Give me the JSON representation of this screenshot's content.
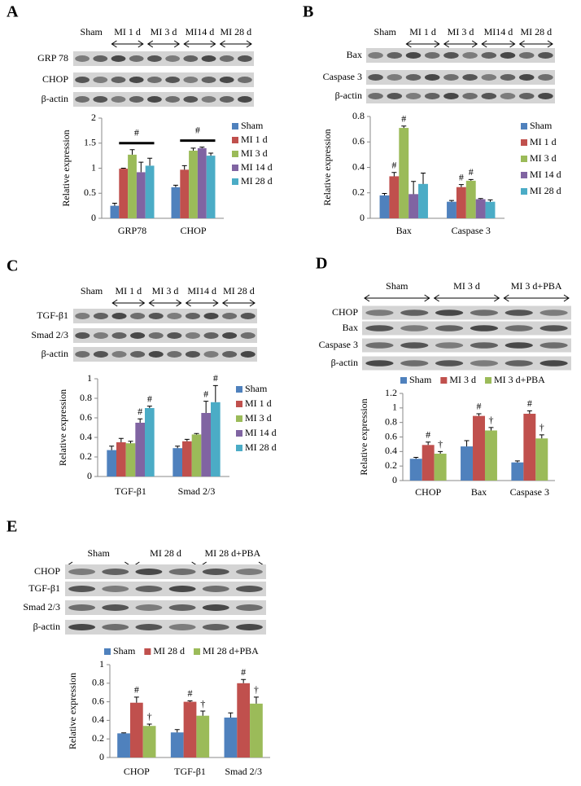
{
  "chart_data": [
    {
      "type": "bar",
      "panel_label": "A",
      "y_label": "Relative expression",
      "legend": "right",
      "blot": {
        "lane_groups": [
          "Sham",
          "MI 1 d",
          "MI 3 d",
          "MI14 d",
          "MI 28 d"
        ],
        "rows": [
          "GRP 78",
          "CHOP",
          "β-actin"
        ]
      },
      "categories": [
        "GRP78",
        "CHOP"
      ],
      "ylim": [
        0,
        2
      ],
      "yticks": [
        0,
        0.5,
        1,
        1.5,
        2
      ],
      "group_annotations": [
        "#",
        "#"
      ],
      "series": [
        {
          "name": "Sham",
          "color": "#4f81bd",
          "values": [
            0.25,
            0.62
          ],
          "errors": [
            0.05,
            0.04
          ]
        },
        {
          "name": "MI 1 d",
          "color": "#c0504d",
          "values": [
            0.99,
            0.97
          ],
          "errors": [
            0.01,
            0.08
          ]
        },
        {
          "name": "MI 3 d",
          "color": "#9bbb59",
          "values": [
            1.27,
            1.35
          ],
          "errors": [
            0.1,
            0.05
          ]
        },
        {
          "name": "MI 14 d",
          "color": "#8064a2",
          "values": [
            0.92,
            1.4
          ],
          "errors": [
            0.2,
            0.02
          ]
        },
        {
          "name": "MI 28 d",
          "color": "#4bacc6",
          "values": [
            1.05,
            1.25
          ],
          "errors": [
            0.15,
            0.05
          ]
        }
      ]
    },
    {
      "type": "bar",
      "panel_label": "B",
      "y_label": "Relative expression",
      "legend": "right",
      "blot": {
        "lane_groups": [
          "Sham",
          "MI 1 d",
          "MI 3 d",
          "MI14 d",
          "MI 28 d"
        ],
        "rows": [
          "Bax",
          "Caspase 3",
          "β-actin"
        ]
      },
      "categories": [
        "Bax",
        "Caspase 3"
      ],
      "ylim": [
        0,
        0.8
      ],
      "yticks": [
        0,
        0.2,
        0.4,
        0.6,
        0.8
      ],
      "series": [
        {
          "name": "Sham",
          "color": "#4f81bd",
          "values": [
            0.18,
            0.13
          ],
          "errors": [
            0.015,
            0.01
          ],
          "annotations": [
            null,
            null
          ]
        },
        {
          "name": "MI 1 d",
          "color": "#c0504d",
          "values": [
            0.33,
            0.245
          ],
          "errors": [
            0.03,
            0.02
          ],
          "annotations": [
            "#",
            "#"
          ]
        },
        {
          "name": "MI 3 d",
          "color": "#9bbb59",
          "values": [
            0.71,
            0.295
          ],
          "errors": [
            0.015,
            0.01
          ],
          "annotations": [
            "#",
            "#"
          ]
        },
        {
          "name": "MI 14 d",
          "color": "#8064a2",
          "values": [
            0.19,
            0.15
          ],
          "errors": [
            0.1,
            0.005
          ],
          "annotations": [
            null,
            null
          ]
        },
        {
          "name": "MI 28 d",
          "color": "#4bacc6",
          "values": [
            0.27,
            0.13
          ],
          "errors": [
            0.085,
            0.015
          ],
          "annotations": [
            null,
            null
          ]
        }
      ]
    },
    {
      "type": "bar",
      "panel_label": "C",
      "y_label": "Relative expression",
      "legend": "right",
      "blot": {
        "lane_groups": [
          "Sham",
          "MI 1 d",
          "MI 3 d",
          "MI14 d",
          "MI 28 d"
        ],
        "rows": [
          "TGF-β1",
          "Smad 2/3",
          "β-actin"
        ]
      },
      "categories": [
        "TGF-β1",
        "Smad 2/3"
      ],
      "ylim": [
        0,
        1
      ],
      "yticks": [
        0,
        0.2,
        0.4,
        0.6,
        0.8,
        1
      ],
      "series": [
        {
          "name": "Sham",
          "color": "#4f81bd",
          "values": [
            0.27,
            0.29
          ],
          "errors": [
            0.04,
            0.02
          ],
          "annotations": [
            null,
            null
          ]
        },
        {
          "name": "MI 1 d",
          "color": "#c0504d",
          "values": [
            0.35,
            0.36
          ],
          "errors": [
            0.04,
            0.02
          ],
          "annotations": [
            null,
            null
          ]
        },
        {
          "name": "MI 3 d",
          "color": "#9bbb59",
          "values": [
            0.34,
            0.43
          ],
          "errors": [
            0.02,
            0.01
          ],
          "annotations": [
            null,
            null
          ]
        },
        {
          "name": "MI 14 d",
          "color": "#8064a2",
          "values": [
            0.55,
            0.65
          ],
          "errors": [
            0.04,
            0.12
          ],
          "annotations": [
            "#",
            "#"
          ]
        },
        {
          "name": "MI 28 d",
          "color": "#4bacc6",
          "values": [
            0.7,
            0.76
          ],
          "errors": [
            0.02,
            0.17
          ],
          "annotations": [
            "#",
            "#"
          ]
        }
      ]
    },
    {
      "type": "bar",
      "panel_label": "D",
      "y_label": "Relative expression",
      "legend": "top",
      "blot": {
        "lane_groups": [
          "Sham",
          "MI 3 d",
          "MI 3 d+PBA"
        ],
        "rows": [
          "CHOP",
          "Bax",
          "Caspase 3",
          "β-actin"
        ]
      },
      "categories": [
        "CHOP",
        "Bax",
        "Caspase 3"
      ],
      "ylim": [
        0,
        1.2
      ],
      "yticks": [
        0,
        0.2,
        0.4,
        0.6,
        0.8,
        1,
        1.2
      ],
      "series": [
        {
          "name": "Sham",
          "color": "#4f81bd",
          "values": [
            0.3,
            0.47,
            0.25
          ],
          "errors": [
            0.02,
            0.08,
            0.02
          ],
          "annotations": [
            null,
            null,
            null
          ]
        },
        {
          "name": "MI 3 d",
          "color": "#c0504d",
          "values": [
            0.49,
            0.89,
            0.92
          ],
          "errors": [
            0.04,
            0.03,
            0.04
          ],
          "annotations": [
            "#",
            "#",
            "#"
          ]
        },
        {
          "name": "MI 3 d+PBA",
          "color": "#9bbb59",
          "values": [
            0.37,
            0.69,
            0.58
          ],
          "errors": [
            0.03,
            0.04,
            0.05
          ],
          "annotations": [
            "†",
            "†",
            "†"
          ]
        }
      ]
    },
    {
      "type": "bar",
      "panel_label": "E",
      "y_label": "Relative expression",
      "legend": "top",
      "blot": {
        "lane_groups": [
          "Sham",
          "MI 28 d",
          "MI 28 d+PBA"
        ],
        "rows": [
          "CHOP",
          "TGF-β1",
          "Smad 2/3",
          "β-actin"
        ]
      },
      "categories": [
        "CHOP",
        "TGF-β1",
        "Smad 2/3"
      ],
      "ylim": [
        0,
        1
      ],
      "yticks": [
        0,
        0.2,
        0.4,
        0.6,
        0.8,
        1
      ],
      "series": [
        {
          "name": "Sham",
          "color": "#4f81bd",
          "values": [
            0.26,
            0.27,
            0.43
          ],
          "errors": [
            0.005,
            0.03,
            0.05
          ],
          "annotations": [
            null,
            null,
            null
          ]
        },
        {
          "name": "MI 28 d",
          "color": "#c0504d",
          "values": [
            0.59,
            0.6,
            0.8
          ],
          "errors": [
            0.06,
            0.01,
            0.04
          ],
          "annotations": [
            "#",
            "#",
            "#"
          ]
        },
        {
          "name": "MI 28 d+PBA",
          "color": "#9bbb59",
          "values": [
            0.34,
            0.45,
            0.58
          ],
          "errors": [
            0.02,
            0.05,
            0.07
          ],
          "annotations": [
            "†",
            "†",
            "†"
          ]
        }
      ]
    }
  ]
}
